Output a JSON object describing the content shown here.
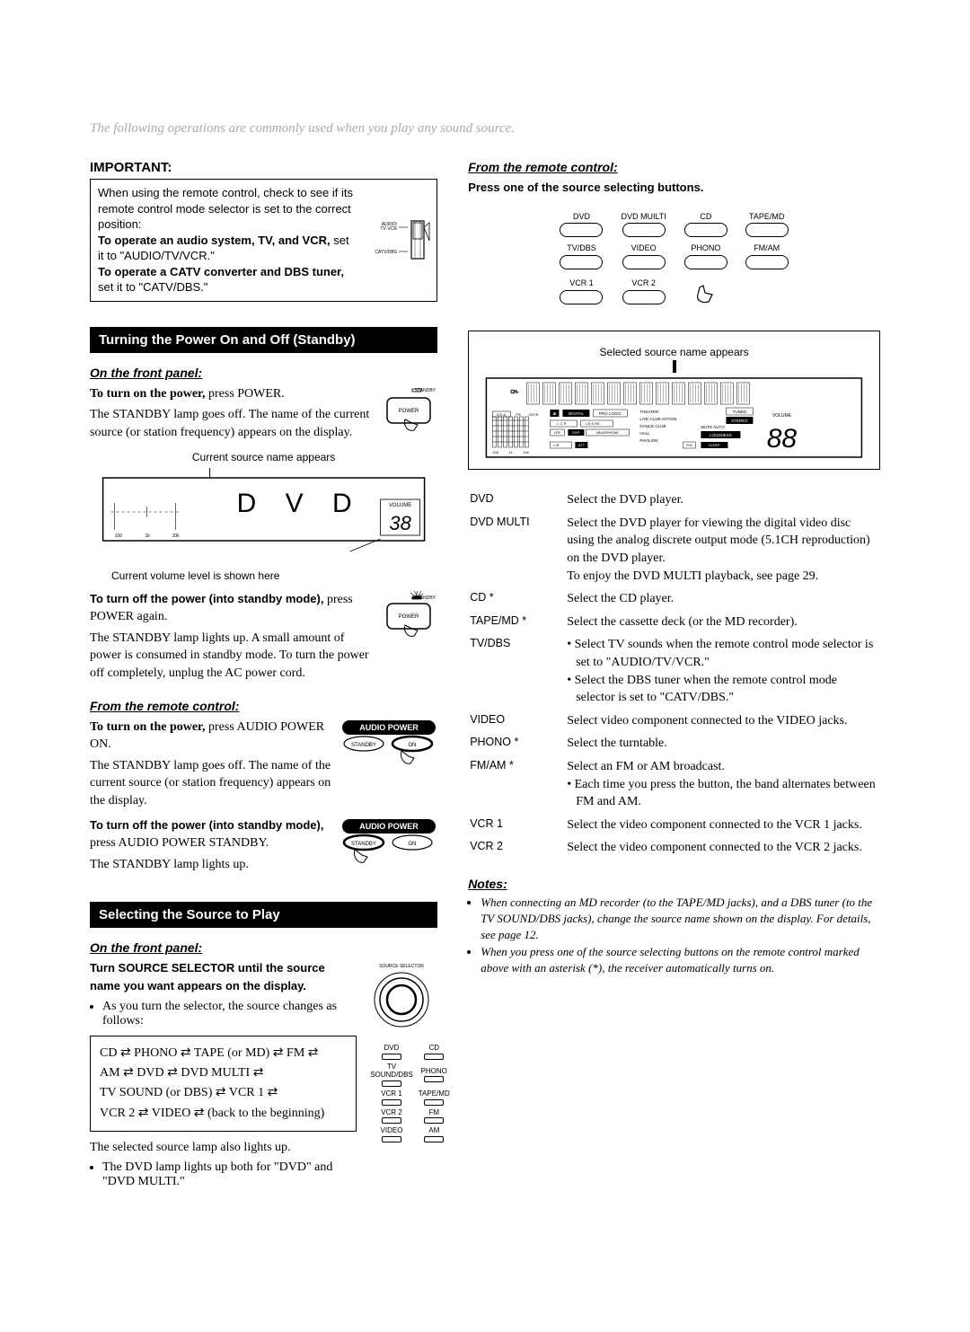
{
  "intro": "The following operations are commonly used when you play any sound source.",
  "important": {
    "heading": "IMPORTANT:",
    "line1": "When using the remote control, check to see if its remote control mode selector is set to the correct position:",
    "line2_bold": "To operate an audio system, TV, and VCR,",
    "line2_rest": " set it to \"AUDIO/TV/VCR.\"",
    "line3_bold": "To operate a CATV converter and DBS tuner,",
    "line3_rest": " set it to \"CATV/DBS.\"",
    "label_top": "AUDIO/\nTV·VCR",
    "label_bot": "CATV/DBS"
  },
  "sec1": {
    "bar": "Turning the Power On and Off (Standby)",
    "sub1": "On the front panel:",
    "p1_bold": "To turn on the power,",
    "p1_rest": " press POWER.",
    "p2": "The STANDBY lamp goes off. The name of the current source (or station frequency) appears on the display.",
    "standby_label": "STANDBY",
    "power_label": "POWER",
    "cap1": "Current source name appears",
    "disp_text": "D V D",
    "disp_vol_label": "VOLUME",
    "disp_vol_value": "38",
    "cap2": "Current volume level is shown here",
    "off1_bold": "To turn off the power (into standby mode),",
    "off1_rest": " press POWER again.",
    "off2": "The STANDBY lamp lights up. A small amount of power is consumed in standby mode. To turn the power off completely, unplug the AC power cord.",
    "sub2": "From the remote control:",
    "rc1_bold": "To turn on the power,",
    "rc1_rest": " press AUDIO POWER ON.",
    "rc2": "The STANDBY lamp goes off. The name of the current source (or station frequency) appears on the display.",
    "audio_power": "AUDIO  POWER",
    "btn_standby": "STANDBY",
    "btn_on": "ON",
    "off2_bold": "To turn off the power (into standby mode),",
    "off2_rest": " press AUDIO POWER STANDBY.",
    "off3": "The STANDBY lamp lights up."
  },
  "sec2": {
    "bar": "Selecting the Source to Play",
    "sub1": "On the front panel:",
    "p1_bold": "Turn SOURCE SELECTOR until the source name you want appears on the display.",
    "p2": "As you turn the selector, the source changes as follows:",
    "dial_label": "SOURCE  SELECTOR",
    "chain1": "CD ⇄ PHONO ⇄ TAPE (or MD) ⇄ FM ⇄",
    "chain2": "AM ⇄ DVD ⇄ DVD MULTI ⇄",
    "chain3": "TV SOUND (or DBS) ⇄ VCR 1 ⇄",
    "chain4": "VCR 2 ⇄ VIDEO ⇄ (back to the beginning)",
    "lamp_note1": "The selected source lamp also lights up.",
    "lamp_note2": "The DVD lamp lights up both for \"DVD\" and \"DVD MULTI.\"",
    "lamps": [
      [
        "DVD",
        "CD"
      ],
      [
        "TV SOUND/DBS",
        "PHONO"
      ],
      [
        "VCR 1",
        "TAPE/MD"
      ],
      [
        "VCR 2",
        "FM"
      ],
      [
        "VIDEO",
        "AM"
      ]
    ]
  },
  "right": {
    "sub1": "From the remote control:",
    "p1_bold": "Press one of the source selecting buttons.",
    "buttons": [
      [
        "DVD",
        "DVD MUILTI",
        "CD",
        "TAPE/MD"
      ],
      [
        "TV/DBS",
        "VIDEO",
        "PHONO",
        "FM/AM"
      ],
      [
        "VCR 1",
        "VCR 2",
        "",
        ""
      ]
    ],
    "disp_caption": "Selected source name appears",
    "sources": [
      {
        "k": "DVD",
        "v": "Select the DVD player."
      },
      {
        "k": "DVD MULTI",
        "v": "Select the DVD player for viewing the digital video disc using the analog discrete output mode (5.1CH reproduction) on the DVD player.\nTo enjoy the DVD MULTI playback, see page 29."
      },
      {
        "k": "CD *",
        "v": "Select the CD player."
      },
      {
        "k": "TAPE/MD *",
        "v": "Select the cassette deck (or the MD recorder)."
      },
      {
        "k": "TV/DBS",
        "v": "• Select TV sounds when the remote control mode selector is set to \"AUDIO/TV/VCR.\"\n• Select the DBS tuner when the remote control mode selector is set to \"CATV/DBS.\""
      },
      {
        "k": "VIDEO",
        "v": "Select video component connected to the VIDEO jacks."
      },
      {
        "k": "PHONO *",
        "v": "Select the turntable."
      },
      {
        "k": "FM/AM *",
        "v": "Select an FM or AM broadcast.\n• Each time you press the button, the band alternates between FM and AM."
      },
      {
        "k": "VCR 1",
        "v": "Select the video component connected to the VCR 1 jacks."
      },
      {
        "k": "VCR 2",
        "v": "Select the video component connected to the VCR 2 jacks."
      }
    ],
    "notes_h": "Notes:",
    "note1": "When connecting an MD recorder (to the TAPE/MD jacks), and a DBS tuner (to the TV SOUND/DBS jacks), change the source name shown on the display. For details, see page 12.",
    "note2": "When you press one of the source selecting buttons on the remote control marked above with an asterisk (*), the receiver automatically turns on.",
    "disp_labels": {
      "sea": "S.E.A.",
      "fr": "FR",
      "cntr": "CNTR",
      "digital": "DIGITAL",
      "pro": "PRO LOGIC",
      "programs": "THEATER\nLIVE CLUB  ACTION\nDANCE CLUB\nHALL\nPAVILION",
      "tuned": "TUNED",
      "stereo": "STEREO",
      "mute": "MUTE  AUTO",
      "loud": "LOUDNESS",
      "sleep": "SLEEP",
      "volume": "VOLUME",
      "vol_val": "88",
      "dsp": "DSP",
      "headphone": "HEADPHONE",
      "lr": "L  C  R",
      "ls": "LS  S  RS",
      "att": "ATT",
      "lfe": "LFE",
      "ch": "CH-"
    }
  }
}
